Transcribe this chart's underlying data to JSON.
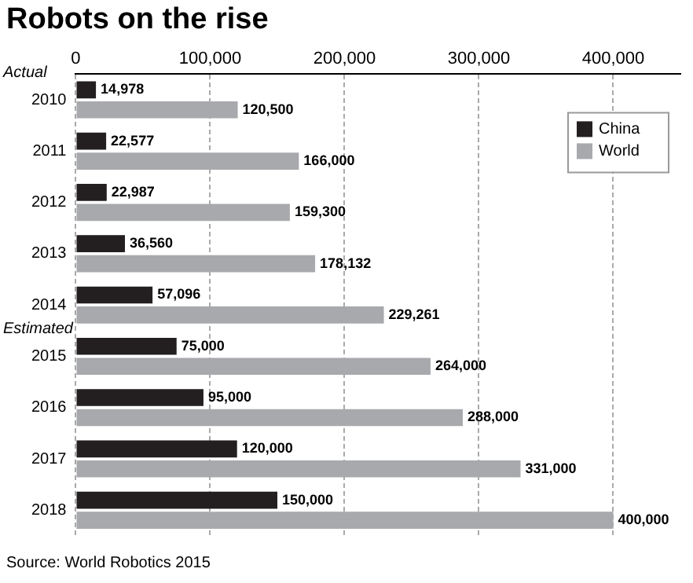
{
  "chart_data": {
    "type": "bar",
    "orientation": "horizontal",
    "title": "Robots on the rise",
    "categories": [
      "2010",
      "2011",
      "2012",
      "2013",
      "2014",
      "2015",
      "2016",
      "2017",
      "2018"
    ],
    "series": [
      {
        "name": "China",
        "color": "#231f20",
        "values": [
          14978,
          22577,
          22987,
          36560,
          57096,
          75000,
          95000,
          120000,
          150000
        ],
        "value_labels": [
          "14,978",
          "22,577",
          "22,987",
          "36,560",
          "57,096",
          "75,000",
          "95,000",
          "120,000",
          "150,000"
        ]
      },
      {
        "name": "World",
        "color": "#a7a9ac",
        "values": [
          120500,
          166000,
          159300,
          178132,
          229261,
          264000,
          288000,
          331000,
          400000
        ],
        "value_labels": [
          "120,500",
          "166,000",
          "159,300",
          "178,132",
          "229,261",
          "264,000",
          "288,000",
          "331,000",
          "400,000"
        ]
      }
    ],
    "xlim": [
      0,
      450000
    ],
    "xticks": [
      0,
      {
        "value": 100000,
        "label": "100,000"
      },
      {
        "value": 200000,
        "label": "200,000"
      },
      {
        "value": 300000,
        "label": "300,000"
      },
      {
        "value": 400000,
        "label": "400,000"
      }
    ],
    "grid": "x",
    "legend": "top right",
    "annotations": [
      "Actual",
      "Estimated",
      "Source: World Robotics 2015"
    ]
  }
}
